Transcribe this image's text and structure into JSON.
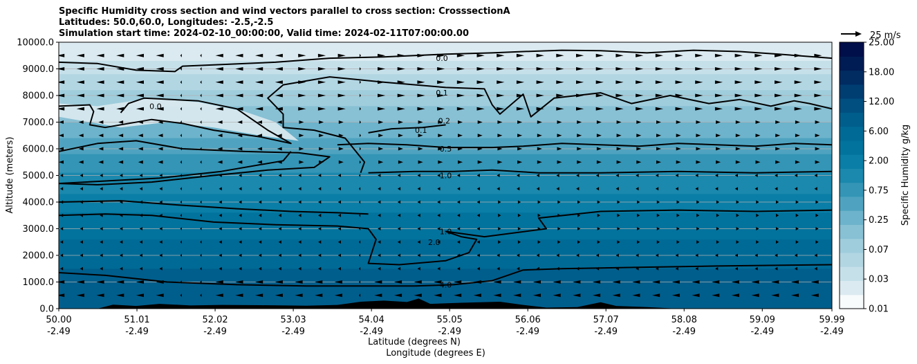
{
  "chart_data": {
    "type": "contourf",
    "title_lines": [
      "Specific Humidity cross section and wind vectors parallel to cross section: CrosssectionA",
      "Latitudes: 50.0,60.0, Longitudes: -2.5,-2.5",
      "Simulation start time: 2024-02-10_00:00:00, Valid time: 2024-02-11T07:00:00.00"
    ],
    "ylabel": "Altitude (meters)",
    "xlabel_lat": "Latitude (degrees N)",
    "xlabel_lon": "Longitude (degrees E)",
    "ylim": [
      0,
      10000
    ],
    "y_ticks": [
      {
        "v": 0,
        "t": "0.0"
      },
      {
        "v": 1000,
        "t": "1000.0"
      },
      {
        "v": 2000,
        "t": "2000.0"
      },
      {
        "v": 3000,
        "t": "3000.0"
      },
      {
        "v": 4000,
        "t": "4000.0"
      },
      {
        "v": 5000,
        "t": "5000.0"
      },
      {
        "v": 6000,
        "t": "6000.0"
      },
      {
        "v": 7000,
        "t": "7000.0"
      },
      {
        "v": 8000,
        "t": "8000.0"
      },
      {
        "v": 9000,
        "t": "9000.0"
      },
      {
        "v": 10000,
        "t": "10000.0"
      }
    ],
    "xlim": [
      50.0,
      59.99
    ],
    "x_ticks": [
      {
        "v": 50.0,
        "lat": "50.00",
        "lon": "-2.49"
      },
      {
        "v": 51.01,
        "lat": "51.01",
        "lon": "-2.49"
      },
      {
        "v": 52.02,
        "lat": "52.02",
        "lon": "-2.49"
      },
      {
        "v": 53.03,
        "lat": "53.03",
        "lon": "-2.49"
      },
      {
        "v": 54.04,
        "lat": "54.04",
        "lon": "-2.49"
      },
      {
        "v": 55.05,
        "lat": "55.05",
        "lon": "-2.49"
      },
      {
        "v": 56.06,
        "lat": "56.06",
        "lon": "-2.49"
      },
      {
        "v": 57.07,
        "lat": "57.07",
        "lon": "-2.49"
      },
      {
        "v": 58.08,
        "lat": "58.08",
        "lon": "-2.49"
      },
      {
        "v": 59.09,
        "lat": "59.09",
        "lon": "-2.49"
      },
      {
        "v": 59.99,
        "lat": "59.99",
        "lon": "-2.49"
      }
    ],
    "fill_bands": [
      {
        "top": 10000,
        "color": "#dbeaf0"
      },
      {
        "top": 9300,
        "color": "#c6e0ea"
      },
      {
        "top": 8800,
        "color": "#b3d6e3"
      },
      {
        "top": 8200,
        "color": "#9fcddc"
      },
      {
        "top": 7600,
        "color": "#88c0d4"
      },
      {
        "top": 7000,
        "color": "#6db3cb"
      },
      {
        "top": 6400,
        "color": "#4fa3c0"
      },
      {
        "top": 5800,
        "color": "#3495b6"
      },
      {
        "top": 5100,
        "color": "#1b88ad"
      },
      {
        "top": 4300,
        "color": "#0a7ea6"
      },
      {
        "top": 3600,
        "color": "#02739d"
      },
      {
        "top": 2600,
        "color": "#006a96"
      },
      {
        "top": 1500,
        "color": "#005e8c"
      }
    ],
    "dry_tongue_color": "#dbeaf0",
    "contours": [
      {
        "level": "0.0",
        "label": "0.0",
        "label_x": 54.95,
        "label_y": 9400,
        "points": [
          [
            50.0,
            9250
          ],
          [
            50.5,
            9200
          ],
          [
            51.0,
            8950
          ],
          [
            51.5,
            8900
          ],
          [
            51.6,
            9100
          ],
          [
            52.0,
            9150
          ],
          [
            52.8,
            9250
          ],
          [
            53.5,
            9400
          ],
          [
            54.2,
            9450
          ],
          [
            55.0,
            9550
          ],
          [
            55.6,
            9600
          ],
          [
            56.0,
            9650
          ],
          [
            56.5,
            9700
          ],
          [
            57.0,
            9680
          ],
          [
            57.6,
            9600
          ],
          [
            58.2,
            9700
          ],
          [
            58.8,
            9650
          ],
          [
            59.3,
            9550
          ],
          [
            59.99,
            9400
          ]
        ]
      },
      {
        "level": "0.0",
        "label": "0.0",
        "label_x": 51.25,
        "label_y": 7600,
        "points": [
          [
            50.0,
            7600
          ],
          [
            50.4,
            7650
          ],
          [
            50.45,
            7400
          ],
          [
            50.4,
            6900
          ],
          [
            50.6,
            6800
          ],
          [
            51.2,
            7100
          ],
          [
            51.6,
            6950
          ],
          [
            52.0,
            6700
          ],
          [
            52.6,
            6450
          ],
          [
            53.0,
            6200
          ],
          [
            52.7,
            6700
          ],
          [
            52.5,
            7100
          ],
          [
            52.3,
            7500
          ],
          [
            51.8,
            7800
          ],
          [
            51.1,
            7900
          ],
          [
            50.9,
            7700
          ],
          [
            50.8,
            7350
          ]
        ]
      },
      {
        "level": "0.1",
        "label": "0.1",
        "label_x": 54.95,
        "label_y": 8100,
        "points": [
          [
            53.9,
            5100
          ],
          [
            53.95,
            5500
          ],
          [
            53.7,
            6400
          ],
          [
            53.3,
            6700
          ],
          [
            52.9,
            6800
          ],
          [
            52.9,
            7300
          ],
          [
            52.7,
            7900
          ],
          [
            52.9,
            8400
          ],
          [
            53.5,
            8700
          ],
          [
            54.2,
            8500
          ],
          [
            55.0,
            8300
          ],
          [
            55.5,
            8250
          ],
          [
            55.6,
            7650
          ],
          [
            55.7,
            7300
          ],
          [
            56.0,
            8050
          ],
          [
            56.1,
            7200
          ],
          [
            56.4,
            7900
          ],
          [
            57.0,
            8100
          ],
          [
            57.4,
            7700
          ],
          [
            57.9,
            8000
          ],
          [
            58.4,
            7700
          ],
          [
            58.8,
            7850
          ],
          [
            59.2,
            7600
          ],
          [
            59.5,
            7800
          ],
          [
            59.7,
            7700
          ],
          [
            59.99,
            7500
          ]
        ]
      },
      {
        "level": "0.1",
        "label": "0.1",
        "label_x": 54.68,
        "label_y": 6700,
        "points": [
          [
            54.0,
            6600
          ],
          [
            54.3,
            6750
          ],
          [
            54.7,
            6800
          ],
          [
            55.0,
            6900
          ]
        ]
      },
      {
        "level": "0.2",
        "label": "0.2",
        "label_x": 54.98,
        "label_y": 7050,
        "points": [
          [
            50.0,
            5900
          ],
          [
            50.5,
            6200
          ],
          [
            51.0,
            6300
          ],
          [
            51.6,
            6000
          ],
          [
            52.4,
            5900
          ],
          [
            53.1,
            5850
          ],
          [
            53.5,
            5700
          ],
          [
            53.3,
            5300
          ],
          [
            52.7,
            5200
          ],
          [
            52.0,
            5000
          ],
          [
            51.2,
            4750
          ],
          [
            50.5,
            4650
          ],
          [
            50.0,
            4700
          ],
          [
            51.3,
            4900
          ],
          [
            52.1,
            5150
          ],
          [
            52.9,
            5550
          ],
          [
            53.0,
            5900
          ]
        ]
      },
      {
        "level": "0.5",
        "label": "0.5",
        "label_x": 55.0,
        "label_y": 6000,
        "points": [
          [
            53.6,
            6150
          ],
          [
            54.0,
            6200
          ],
          [
            54.5,
            6150
          ],
          [
            55.0,
            6050
          ],
          [
            55.6,
            6050
          ],
          [
            56.0,
            6100
          ],
          [
            56.5,
            6200
          ],
          [
            57.0,
            6150
          ],
          [
            57.5,
            6100
          ],
          [
            58.0,
            6200
          ],
          [
            58.5,
            6150
          ],
          [
            59.0,
            6100
          ],
          [
            59.5,
            6200
          ],
          [
            59.99,
            6150
          ]
        ]
      },
      {
        "level": "1.0",
        "label": "1.0",
        "label_x": 55.0,
        "label_y": 5000,
        "points": [
          [
            54.0,
            5100
          ],
          [
            54.6,
            5150
          ],
          [
            55.1,
            5150
          ],
          [
            55.6,
            5200
          ],
          [
            56.2,
            5100
          ],
          [
            57.0,
            5100
          ],
          [
            58.0,
            5150
          ],
          [
            59.0,
            5100
          ],
          [
            59.99,
            5150
          ]
        ]
      },
      {
        "level": "1.0",
        "label": "1.0",
        "label_x": 55.0,
        "label_y": 2900,
        "points": [
          [
            50.0,
            3500
          ],
          [
            50.6,
            3550
          ],
          [
            51.2,
            3500
          ],
          [
            52.0,
            3250
          ],
          [
            52.8,
            3150
          ],
          [
            53.6,
            3100
          ],
          [
            54.0,
            3000
          ],
          [
            54.1,
            2600
          ],
          [
            54.0,
            1700
          ],
          [
            54.4,
            1650
          ],
          [
            55.0,
            1800
          ],
          [
            55.3,
            2100
          ],
          [
            55.4,
            2600
          ],
          [
            55.2,
            2700
          ],
          [
            55.0,
            2900
          ],
          [
            55.5,
            2700
          ],
          [
            56.3,
            3000
          ],
          [
            56.2,
            3400
          ],
          [
            57.0,
            3650
          ],
          [
            58.0,
            3700
          ],
          [
            59.0,
            3650
          ],
          [
            59.99,
            3700
          ]
        ]
      },
      {
        "level": "2.0",
        "label": "2.0",
        "label_x": 54.85,
        "label_y": 2500,
        "points": [
          [
            50.0,
            4000
          ],
          [
            50.8,
            4050
          ],
          [
            51.5,
            3900
          ],
          [
            52.3,
            3750
          ],
          [
            53.0,
            3650
          ],
          [
            53.6,
            3600
          ],
          [
            54.0,
            3550
          ]
        ]
      },
      {
        "level": "4.0",
        "label": "4.0",
        "label_x": 55.0,
        "label_y": 900,
        "points": [
          [
            50.0,
            1350
          ],
          [
            50.6,
            1250
          ],
          [
            51.4,
            1000
          ],
          [
            52.3,
            900
          ],
          [
            53.2,
            850
          ],
          [
            54.0,
            850
          ],
          [
            54.6,
            850
          ],
          [
            55.1,
            900
          ],
          [
            55.6,
            1050
          ],
          [
            56.0,
            1450
          ],
          [
            56.5,
            1500
          ],
          [
            57.5,
            1550
          ],
          [
            58.5,
            1600
          ],
          [
            59.99,
            1650
          ]
        ]
      }
    ],
    "terrain": [
      [
        50.0,
        0
      ],
      [
        50.5,
        0
      ],
      [
        50.7,
        150
      ],
      [
        51.0,
        100
      ],
      [
        51.3,
        180
      ],
      [
        51.7,
        120
      ],
      [
        52.1,
        140
      ],
      [
        52.6,
        130
      ],
      [
        53.2,
        110
      ],
      [
        53.6,
        140
      ],
      [
        53.9,
        260
      ],
      [
        54.2,
        300
      ],
      [
        54.5,
        250
      ],
      [
        54.65,
        380
      ],
      [
        54.8,
        180
      ],
      [
        55.2,
        220
      ],
      [
        55.7,
        260
      ],
      [
        56.0,
        140
      ],
      [
        56.3,
        40
      ],
      [
        56.7,
        60
      ],
      [
        57.0,
        240
      ],
      [
        57.2,
        100
      ],
      [
        57.6,
        60
      ],
      [
        58.0,
        0
      ],
      [
        59.99,
        0
      ]
    ],
    "wind_reference": "25 m/s",
    "colorbar": {
      "label": "Specific Humidity g/kg",
      "tick_labels": [
        "0.01",
        "0.03",
        "0.07",
        "0.25",
        "0.75",
        "2.00",
        "6.00",
        "12.00",
        "18.00",
        "25.00"
      ],
      "colors": [
        "#f7fbfc",
        "#dbeaf0",
        "#c6e0ea",
        "#b3d6e3",
        "#9fcddc",
        "#88c0d4",
        "#6db3cb",
        "#4fa3c0",
        "#3495b6",
        "#1b88ad",
        "#0a7ea6",
        "#02739d",
        "#006a96",
        "#005e8c",
        "#004f80",
        "#003e72",
        "#002c62",
        "#001c54",
        "#000e4a"
      ]
    }
  }
}
